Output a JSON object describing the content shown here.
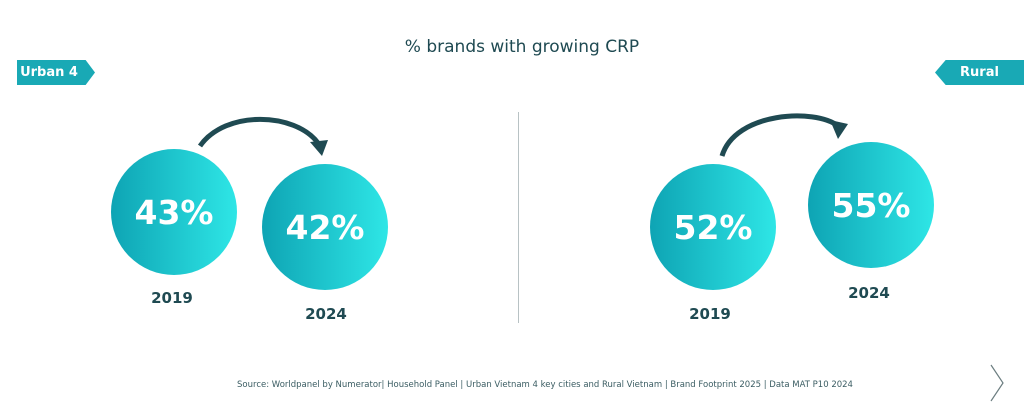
{
  "title": "% brands with growing CRP",
  "panels": [
    {
      "label": "Urban 4",
      "values": [
        {
          "year": "2019",
          "value": "43%"
        },
        {
          "year": "2024",
          "value": "42%"
        }
      ]
    },
    {
      "label": "Rural",
      "values": [
        {
          "year": "2019",
          "value": "52%"
        },
        {
          "year": "2024",
          "value": "55%"
        }
      ]
    }
  ],
  "source": "Source: Worldpanel by Numerator| Household Panel | Urban Vietnam 4 key cities and Rural Vietnam | Brand Footprint 2025 | Data MAT P10 2024",
  "colors": {
    "accent": "#19a9b5",
    "text": "#1f4a52"
  },
  "icons": {
    "next": "chevron-right-icon"
  }
}
